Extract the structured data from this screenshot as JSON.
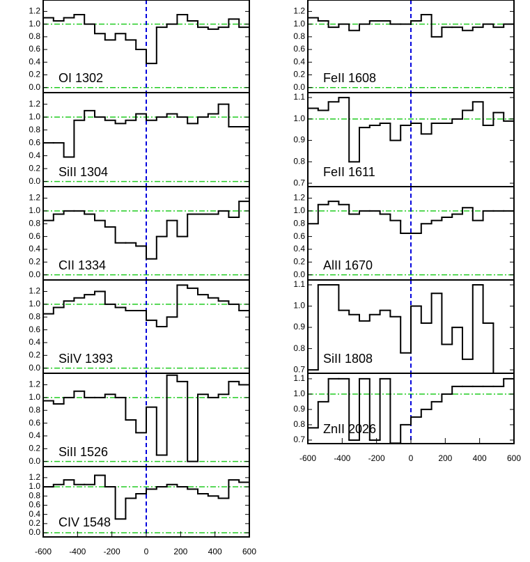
{
  "chart_data": [
    {
      "type": "line",
      "annotation": "OI 1302",
      "color": "#000000",
      "xlim": [
        -600,
        600
      ],
      "ylim": [
        -0.08,
        1.38
      ],
      "yticks": [
        {
          "value": 0,
          "label": "0.0"
        },
        0.2,
        0.4,
        0.6,
        0.8,
        {
          "value": 1,
          "label": "1.0"
        },
        1.2
      ],
      "hlines": [
        0,
        1
      ],
      "vline": 0,
      "x": [
        -570,
        -510,
        -450,
        -390,
        -330,
        -270,
        -210,
        -150,
        -90,
        -30,
        30,
        90,
        150,
        210,
        270,
        330,
        390,
        450,
        510,
        570
      ],
      "values": [
        1.1,
        1.05,
        1.1,
        1.15,
        1.0,
        0.85,
        0.75,
        0.85,
        0.75,
        0.6,
        0.38,
        0.95,
        1.0,
        1.15,
        1.05,
        0.95,
        0.92,
        0.95,
        1.08,
        0.95
      ]
    },
    {
      "type": "line",
      "annotation": "SiII 1304",
      "color": "#000000",
      "xlim": [
        -600,
        600
      ],
      "ylim": [
        -0.08,
        1.38
      ],
      "yticks": [
        {
          "value": 0,
          "label": "0.0"
        },
        0.2,
        0.4,
        0.6,
        0.8,
        {
          "value": 1,
          "label": "1.0"
        },
        1.2
      ],
      "hlines": [
        0,
        1
      ],
      "vline": 0,
      "x": [
        -570,
        -510,
        -450,
        -390,
        -330,
        -270,
        -210,
        -150,
        -90,
        -30,
        30,
        90,
        150,
        210,
        270,
        330,
        390,
        450,
        510,
        570
      ],
      "values": [
        0.6,
        0.6,
        0.38,
        0.95,
        1.1,
        1.0,
        0.95,
        0.9,
        0.95,
        1.05,
        0.95,
        1.0,
        1.05,
        1.0,
        0.9,
        1.0,
        1.05,
        1.2,
        0.85,
        0.85
      ]
    },
    {
      "type": "line",
      "annotation": "CII 1334",
      "color": "#000000",
      "xlim": [
        -600,
        600
      ],
      "ylim": [
        -0.08,
        1.38
      ],
      "yticks": [
        {
          "value": 0,
          "label": "0.0"
        },
        0.2,
        0.4,
        0.6,
        0.8,
        {
          "value": 1,
          "label": "1.0"
        },
        1.2
      ],
      "hlines": [
        0,
        1
      ],
      "vline": 0,
      "x": [
        -570,
        -510,
        -450,
        -390,
        -330,
        -270,
        -210,
        -150,
        -90,
        -30,
        30,
        90,
        150,
        210,
        270,
        330,
        390,
        450,
        510,
        570
      ],
      "values": [
        0.85,
        0.95,
        1.0,
        1.0,
        0.95,
        0.85,
        0.75,
        0.5,
        0.5,
        0.45,
        0.25,
        0.6,
        0.85,
        0.6,
        0.95,
        0.95,
        0.95,
        1.0,
        0.9,
        1.15
      ]
    },
    {
      "type": "line",
      "annotation": "SiIV 1393",
      "color": "#000000",
      "xlim": [
        -600,
        600
      ],
      "ylim": [
        -0.08,
        1.38
      ],
      "yticks": [
        {
          "value": 0,
          "label": "0.0"
        },
        0.2,
        0.4,
        0.6,
        0.8,
        {
          "value": 1,
          "label": "1.0"
        },
        1.2
      ],
      "hlines": [
        0,
        1
      ],
      "vline": 0,
      "x": [
        -570,
        -510,
        -450,
        -390,
        -330,
        -270,
        -210,
        -150,
        -90,
        -30,
        30,
        90,
        150,
        210,
        270,
        330,
        390,
        450,
        510,
        570
      ],
      "values": [
        0.85,
        0.95,
        1.05,
        1.1,
        1.15,
        1.2,
        1.0,
        0.95,
        0.9,
        0.9,
        0.75,
        0.65,
        0.8,
        1.3,
        1.25,
        1.15,
        1.1,
        1.05,
        1.0,
        0.9
      ]
    },
    {
      "type": "line",
      "annotation": "SiII 1526",
      "color": "#000000",
      "xlim": [
        -600,
        600
      ],
      "ylim": [
        -0.08,
        1.38
      ],
      "yticks": [
        {
          "value": 0,
          "label": "0.0"
        },
        0.2,
        0.4,
        0.6,
        0.8,
        {
          "value": 1,
          "label": "1.0"
        },
        1.2
      ],
      "hlines": [
        0,
        1
      ],
      "vline": 0,
      "x": [
        -570,
        -510,
        -450,
        -390,
        -330,
        -270,
        -210,
        -150,
        -90,
        -30,
        30,
        90,
        150,
        210,
        270,
        330,
        390,
        450,
        510,
        570
      ],
      "values": [
        0.95,
        0.9,
        1.0,
        1.1,
        1.0,
        1.0,
        1.05,
        1.0,
        0.65,
        0.45,
        0.85,
        0.1,
        1.35,
        1.25,
        0.0,
        1.05,
        1.0,
        1.05,
        1.25,
        1.2
      ]
    },
    {
      "type": "line",
      "annotation": "CIV 1548",
      "color": "#000000",
      "xlim": [
        -600,
        600
      ],
      "ylim": [
        -0.09,
        1.44
      ],
      "yticks": [
        {
          "value": 0,
          "label": "0.0"
        },
        0.2,
        0.4,
        0.6,
        0.8,
        {
          "value": 1,
          "label": "1.0"
        },
        1.2
      ],
      "xticks": [
        -600,
        -400,
        -200,
        0,
        200,
        400,
        600
      ],
      "hlines": [
        0,
        1
      ],
      "vline": 0,
      "x": [
        -570,
        -510,
        -450,
        -390,
        -330,
        -270,
        -210,
        -150,
        -90,
        -30,
        30,
        90,
        150,
        210,
        270,
        330,
        390,
        450,
        510,
        570
      ],
      "values": [
        1.0,
        1.05,
        1.15,
        1.05,
        1.05,
        1.25,
        1.0,
        0.3,
        0.75,
        0.85,
        0.95,
        1.0,
        1.05,
        1.0,
        0.95,
        0.85,
        0.8,
        0.75,
        1.15,
        1.1
      ]
    },
    {
      "type": "line",
      "annotation": "FeII 1608",
      "color": "#000000",
      "xlim": [
        -600,
        600
      ],
      "ylim": [
        -0.08,
        1.38
      ],
      "yticks": [
        {
          "value": 0,
          "label": "0.0"
        },
        0.2,
        0.4,
        0.6,
        0.8,
        {
          "value": 1,
          "label": "1.0"
        },
        1.2
      ],
      "hlines": [
        0,
        1
      ],
      "vline": 0,
      "x": [
        -570,
        -510,
        -450,
        -390,
        -330,
        -270,
        -210,
        -150,
        -90,
        -30,
        30,
        90,
        150,
        210,
        270,
        330,
        390,
        450,
        510,
        570
      ],
      "values": [
        1.1,
        1.05,
        0.95,
        1.0,
        0.9,
        1.0,
        1.05,
        1.05,
        1.0,
        1.0,
        1.05,
        1.15,
        0.8,
        0.95,
        0.95,
        0.9,
        0.95,
        1.0,
        0.95,
        1.0
      ]
    },
    {
      "type": "line",
      "annotation": "FeII 1611",
      "color": "#000000",
      "xlim": [
        -600,
        600
      ],
      "ylim": [
        0.684,
        1.123
      ],
      "yticks": [
        0.7,
        0.8,
        0.9,
        {
          "value": 1,
          "label": "1.0"
        },
        1.1
      ],
      "hlines": [
        1
      ],
      "vline": 0,
      "x": [
        -570,
        -510,
        -450,
        -390,
        -330,
        -270,
        -210,
        -150,
        -90,
        -30,
        30,
        90,
        150,
        210,
        270,
        330,
        390,
        450,
        510,
        570
      ],
      "values": [
        1.05,
        1.04,
        1.08,
        1.1,
        0.8,
        0.96,
        0.97,
        0.98,
        0.9,
        0.97,
        0.98,
        0.93,
        0.98,
        0.98,
        1.0,
        1.04,
        1.08,
        0.97,
        1.03,
        0.99
      ]
    },
    {
      "type": "line",
      "annotation": "AlII 1670",
      "color": "#000000",
      "xlim": [
        -600,
        600
      ],
      "ylim": [
        -0.08,
        1.38
      ],
      "yticks": [
        {
          "value": 0,
          "label": "0.0"
        },
        0.2,
        0.4,
        0.6,
        0.8,
        {
          "value": 1,
          "label": "1.0"
        },
        1.2
      ],
      "hlines": [
        0,
        1
      ],
      "vline": 0,
      "x": [
        -570,
        -510,
        -450,
        -390,
        -330,
        -270,
        -210,
        -150,
        -90,
        -30,
        30,
        90,
        150,
        210,
        270,
        330,
        390,
        450,
        510,
        570
      ],
      "values": [
        0.8,
        1.1,
        1.15,
        1.1,
        0.95,
        1.0,
        1.0,
        0.95,
        0.85,
        0.65,
        0.65,
        0.8,
        0.85,
        0.9,
        0.95,
        1.05,
        0.85,
        1.0,
        1.0,
        1.0
      ]
    },
    {
      "type": "line",
      "annotation": "SiII 1808",
      "color": "#000000",
      "xlim": [
        -600,
        600
      ],
      "ylim": [
        0.684,
        1.123
      ],
      "yticks": [
        0.7,
        0.8,
        0.9,
        {
          "value": 1,
          "label": "1.0"
        },
        1.1
      ],
      "hlines": [],
      "vline": 0,
      "x": [
        -570,
        -510,
        -450,
        -390,
        -330,
        -270,
        -210,
        -150,
        -90,
        -30,
        30,
        90,
        150,
        210,
        270,
        330,
        390,
        450,
        510,
        570
      ],
      "values": [
        0.7,
        1.1,
        1.1,
        0.98,
        0.96,
        0.93,
        0.96,
        0.98,
        0.95,
        0.78,
        1.0,
        0.92,
        1.06,
        0.82,
        0.9,
        0.75,
        1.1,
        0.92,
        0.68,
        0.68
      ]
    },
    {
      "type": "line",
      "annotation": "ZnII 2026",
      "color": "#000000",
      "xlim": [
        -600,
        600
      ],
      "ylim": [
        0.677,
        1.136
      ],
      "yticks": [
        0.7,
        0.8,
        0.9,
        {
          "value": 1,
          "label": "1.0"
        },
        1.1
      ],
      "xticks": [
        -600,
        -400,
        -200,
        0,
        200,
        400,
        600
      ],
      "hlines": [
        1
      ],
      "vline": 0,
      "x": [
        -570,
        -510,
        -450,
        -390,
        -330,
        -270,
        -210,
        -150,
        -90,
        -30,
        30,
        90,
        150,
        210,
        270,
        330,
        390,
        450,
        510,
        570
      ],
      "values": [
        0.78,
        0.95,
        1.1,
        1.1,
        0.7,
        1.1,
        0.7,
        1.1,
        0.68,
        0.8,
        0.85,
        0.9,
        0.95,
        1.0,
        1.05,
        1.05,
        1.05,
        1.05,
        1.05,
        1.1
      ]
    }
  ]
}
